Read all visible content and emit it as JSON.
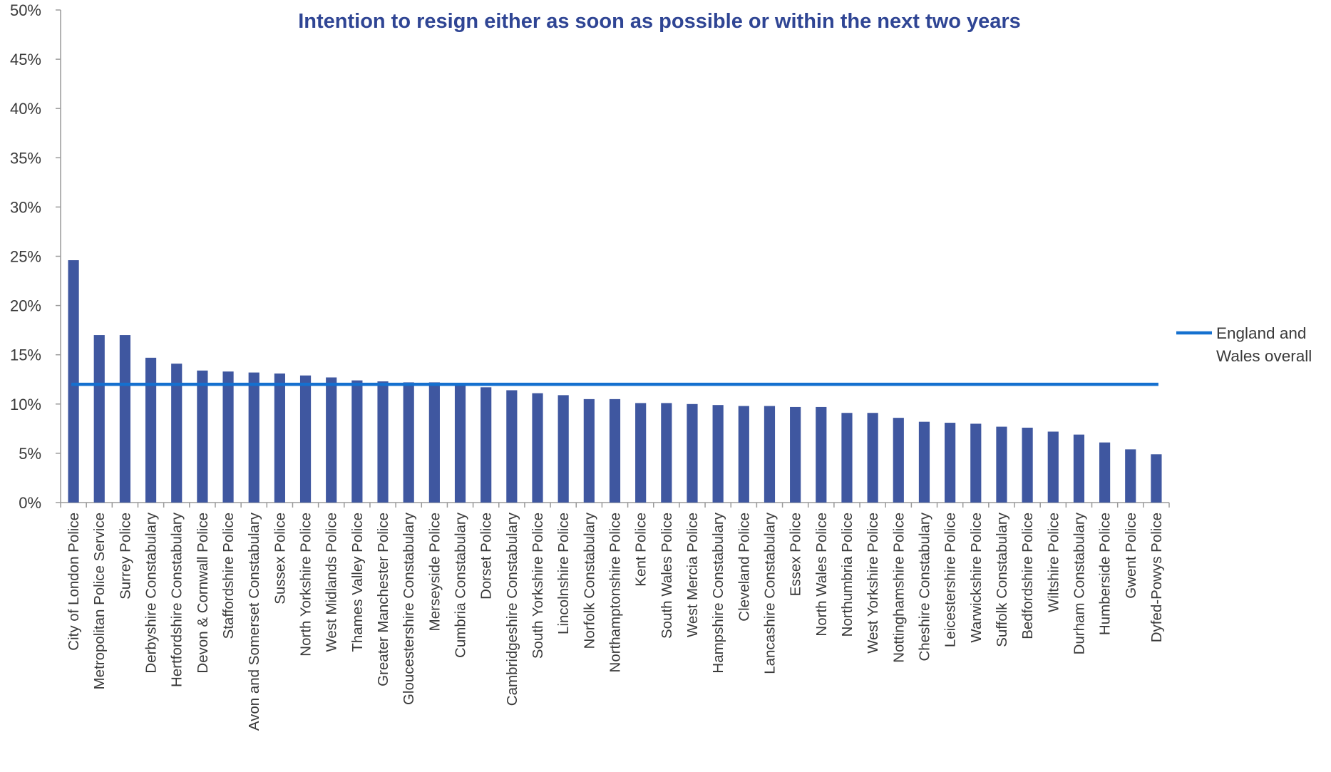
{
  "chart_data": {
    "type": "bar",
    "title": "Intention to resign either as soon as possible or within the next two years",
    "xlabel": "",
    "ylabel": "",
    "ylim": [
      0,
      50
    ],
    "yticks": [
      "0%",
      "5%",
      "10%",
      "15%",
      "20%",
      "25%",
      "30%",
      "35%",
      "40%",
      "45%",
      "50%"
    ],
    "grid": false,
    "legend_position": "right",
    "colors": {
      "bar": "#3f57a0",
      "line": "#1570cf",
      "title": "#2f4594",
      "axis": "#9a9a9a"
    },
    "categories": [
      "City of London Police",
      "Metropolitan Police Service",
      "Surrey Police",
      "Derbyshire Constabulary",
      "Hertfordshire Constabulary",
      "Devon & Cornwall Police",
      "Staffordshire Police",
      "Avon and Somerset Constabulary",
      "Sussex Police",
      "North Yorkshire Police",
      "West Midlands Police",
      "Thames Valley Police",
      "Greater Manchester Police",
      "Gloucestershire Constabulary",
      "Merseyside Police",
      "Cumbria Constabulary",
      "Dorset Police",
      "Cambridgeshire Constabulary",
      "South Yorkshire Police",
      "Lincolnshire Police",
      "Norfolk Constabulary",
      "Northamptonshire Police",
      "Kent Police",
      "South Wales Police",
      "West Mercia Police",
      "Hampshire Constabulary",
      "Cleveland Police",
      "Lancashire Constabulary",
      "Essex Police",
      "North Wales Police",
      "Northumbria Police",
      "West Yorkshire Police",
      "Nottinghamshire Police",
      "Cheshire Constabulary",
      "Leicestershire Police",
      "Warwickshire Police",
      "Suffolk Constabulary",
      "Bedfordshire Police",
      "Wiltshire Police",
      "Durham Constabulary",
      "Humberside Police",
      "Gwent Police",
      "Dyfed-Powys Police"
    ],
    "values": [
      24.6,
      17.0,
      17.0,
      14.7,
      14.1,
      13.4,
      13.3,
      13.2,
      13.1,
      12.9,
      12.7,
      12.4,
      12.3,
      12.2,
      12.2,
      12.1,
      11.7,
      11.4,
      11.1,
      10.9,
      10.5,
      10.5,
      10.1,
      10.1,
      10.0,
      9.9,
      9.8,
      9.8,
      9.7,
      9.7,
      9.1,
      9.1,
      8.6,
      8.2,
      8.1,
      8.0,
      7.7,
      7.6,
      7.2,
      6.9,
      6.1,
      5.4,
      4.9
    ],
    "series": [
      {
        "name": "England and Wales overall",
        "type": "line",
        "value": 12.0
      }
    ],
    "legend_lines": [
      "England and",
      "Wales overall"
    ]
  }
}
